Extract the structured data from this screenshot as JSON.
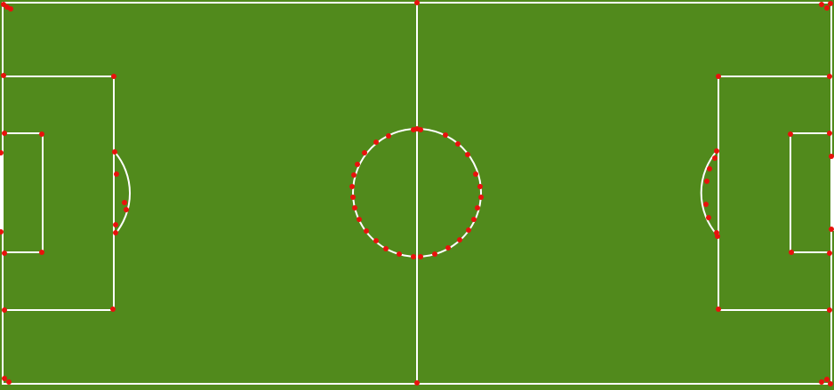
{
  "pitch": {
    "grass_color": "#518a1c",
    "line_color": "#ffffff",
    "marker_color": "#e8120c",
    "goal_color": "#ffffff"
  }
}
